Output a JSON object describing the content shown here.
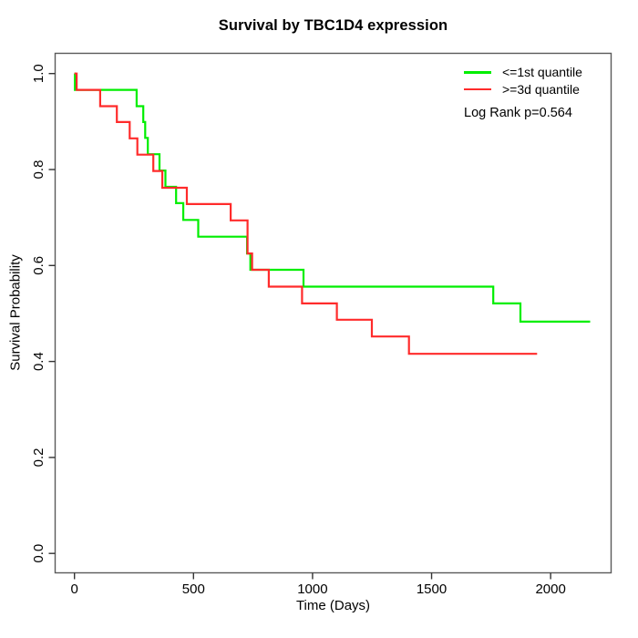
{
  "figure": {
    "background": "#ffffff",
    "text_color": "#000000"
  },
  "chart_data": {
    "type": "line",
    "variant": "kaplan_meier_step_curve",
    "title": "Survival by TBC1D4 expression",
    "xlabel": "Time (Days)",
    "ylabel": "Survival Probability",
    "xlim": [
      0,
      2200
    ],
    "ylim": [
      0.0,
      1.0
    ],
    "grid": false,
    "axis_box": true,
    "axis_color": "#5a5a5a",
    "tick_color": "#333333",
    "xticks": [
      {
        "value": 0,
        "label": "0"
      },
      {
        "value": 500,
        "label": "500"
      },
      {
        "value": 1000,
        "label": "1000"
      },
      {
        "value": 1500,
        "label": "1500"
      },
      {
        "value": 2000,
        "label": "2000"
      }
    ],
    "yticks": [
      {
        "value": 0.0,
        "label": "0.0"
      },
      {
        "value": 0.2,
        "label": "0.2"
      },
      {
        "value": 0.4,
        "label": "0.4"
      },
      {
        "value": 0.6,
        "label": "0.6"
      },
      {
        "value": 0.8,
        "label": "0.8"
      },
      {
        "value": 1.0,
        "label": "1.0"
      }
    ],
    "legend": {
      "position": "top-right",
      "entries": [
        {
          "label": "<=1st quantile",
          "color": "#00ee00"
        },
        {
          "label": ">=3d quantile",
          "color": "#ff2b2b"
        }
      ]
    },
    "annotation": "Log Rank p=0.564",
    "series": [
      {
        "name": "<=1st quantile",
        "color": "#00ee00",
        "line_width": 2.2,
        "end_time": 2166,
        "steps": [
          [
            0,
            1.0
          ],
          [
            2,
            0.966
          ],
          [
            261,
            0.932
          ],
          [
            289,
            0.899
          ],
          [
            297,
            0.866
          ],
          [
            308,
            0.832
          ],
          [
            357,
            0.798
          ],
          [
            382,
            0.764
          ],
          [
            427,
            0.73
          ],
          [
            457,
            0.695
          ],
          [
            520,
            0.66
          ],
          [
            725,
            0.625
          ],
          [
            739,
            0.591
          ],
          [
            962,
            0.556
          ],
          [
            1759,
            0.521
          ],
          [
            1873,
            0.483
          ]
        ]
      },
      {
        "name": ">=3d quantile",
        "color": "#ff2b2b",
        "line_width": 2.2,
        "end_time": 1943,
        "steps": [
          [
            0,
            1.0
          ],
          [
            9,
            0.966
          ],
          [
            108,
            0.932
          ],
          [
            178,
            0.899
          ],
          [
            232,
            0.865
          ],
          [
            264,
            0.831
          ],
          [
            331,
            0.797
          ],
          [
            369,
            0.762
          ],
          [
            472,
            0.728
          ],
          [
            656,
            0.694
          ],
          [
            727,
            0.625
          ],
          [
            746,
            0.591
          ],
          [
            816,
            0.556
          ],
          [
            956,
            0.521
          ],
          [
            1102,
            0.487
          ],
          [
            1249,
            0.452
          ],
          [
            1405,
            0.416
          ]
        ]
      }
    ]
  }
}
